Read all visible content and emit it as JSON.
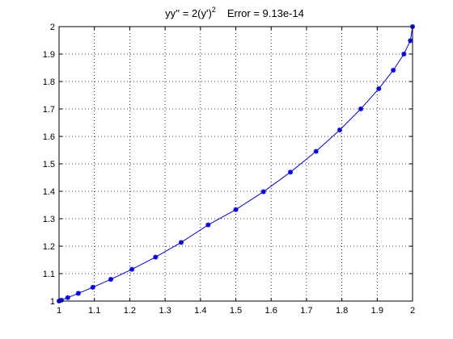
{
  "chart_data": {
    "type": "line",
    "title": {
      "equation_main": "yy'' = 2(y')",
      "equation_exponent": "2",
      "error_text": "Error = 9.13e-14"
    },
    "xlabel": "",
    "ylabel": "",
    "xlim": [
      1,
      2
    ],
    "ylim": [
      1,
      2
    ],
    "xticks": [
      "1",
      "1.1",
      "1.2",
      "1.3",
      "1.4",
      "1.5",
      "1.6",
      "1.7",
      "1.8",
      "1.9",
      "2"
    ],
    "yticks": [
      "1",
      "1.1",
      "1.2",
      "1.3",
      "1.4",
      "1.5",
      "1.6",
      "1.7",
      "1.8",
      "1.9",
      "2"
    ],
    "grid": true,
    "series_color": "#0000ff",
    "series": [
      {
        "x": [
          1.0,
          1.0062,
          1.0245,
          1.0545,
          1.0955,
          1.1464,
          1.2061,
          1.273,
          1.3455,
          1.4218,
          1.5,
          1.5782,
          1.6545,
          1.727,
          1.7939,
          1.8536,
          1.9045,
          1.9455,
          1.9755,
          1.9938,
          2.0
        ],
        "y": [
          1.0,
          1.0031,
          1.0124,
          1.0281,
          1.0502,
          1.0792,
          1.1156,
          1.1601,
          1.2137,
          1.2775,
          1.3333,
          1.3983,
          1.4697,
          1.5455,
          1.6233,
          1.7003,
          1.7738,
          1.8412,
          1.9001,
          1.9489,
          2.0
        ]
      }
    ]
  }
}
